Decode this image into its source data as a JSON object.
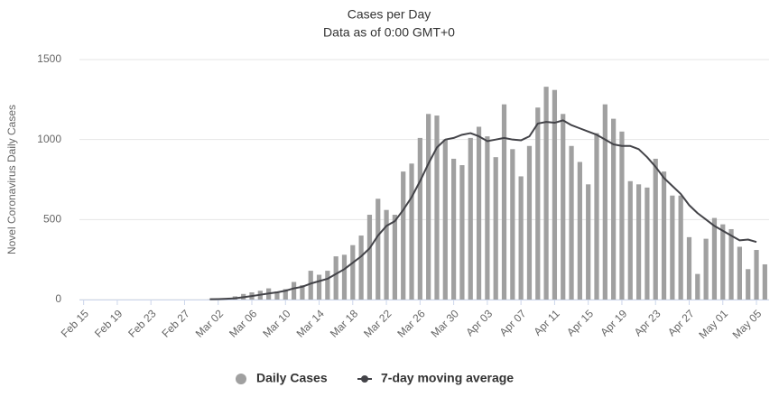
{
  "chart_data": {
    "type": "bar_line",
    "title": "Cases per Day",
    "subtitle": "Data as of 0:00 GMT+0",
    "y_axis_label": "Novel Coronavirus Daily Cases",
    "categories": [
      "Feb 15",
      null,
      null,
      null,
      "Feb 19",
      null,
      null,
      null,
      "Feb 23",
      null,
      null,
      null,
      "Feb 27",
      null,
      null,
      null,
      "Mar 02",
      null,
      null,
      null,
      "Mar 06",
      null,
      null,
      null,
      "Mar 10",
      null,
      null,
      null,
      "Mar 14",
      null,
      null,
      null,
      "Mar 18",
      null,
      null,
      null,
      "Mar 22",
      null,
      null,
      null,
      "Mar 26",
      null,
      null,
      null,
      "Mar 30",
      null,
      null,
      null,
      "Apr 03",
      null,
      null,
      null,
      "Apr 07",
      null,
      null,
      null,
      "Apr 11",
      null,
      null,
      null,
      "Apr 15",
      null,
      null,
      null,
      "Apr 19",
      null,
      null,
      null,
      "Apr 23",
      null,
      null,
      null,
      "Apr 27",
      null,
      null,
      null,
      "May 01",
      null,
      null,
      null,
      "May 05",
      null
    ],
    "series": [
      {
        "name": "Daily Cases",
        "type": "bar",
        "color": "#a0a0a0",
        "values": [
          0,
          0,
          0,
          0,
          0,
          0,
          0,
          0,
          0,
          0,
          0,
          0,
          0,
          0,
          0,
          1,
          3,
          5,
          20,
          35,
          45,
          55,
          70,
          50,
          65,
          110,
          90,
          180,
          155,
          180,
          270,
          280,
          340,
          400,
          530,
          630,
          560,
          530,
          800,
          850,
          1010,
          1160,
          1150,
          1000,
          880,
          840,
          1010,
          1080,
          1020,
          890,
          1220,
          940,
          770,
          960,
          1200,
          1330,
          1310,
          1160,
          960,
          860,
          720,
          1040,
          1220,
          1130,
          1050,
          740,
          720,
          700,
          880,
          800,
          650,
          650,
          390,
          160,
          380,
          510,
          470,
          440,
          330,
          190,
          310,
          220
        ]
      },
      {
        "name": "7-day moving average",
        "type": "line",
        "color": "#434348",
        "values": [
          null,
          null,
          null,
          null,
          null,
          null,
          null,
          null,
          null,
          null,
          null,
          null,
          null,
          null,
          null,
          2,
          3,
          5,
          8,
          15,
          22,
          30,
          38,
          45,
          55,
          70,
          80,
          100,
          115,
          130,
          160,
          190,
          230,
          270,
          320,
          400,
          460,
          490,
          560,
          640,
          740,
          850,
          950,
          1000,
          1010,
          1030,
          1040,
          1020,
          990,
          1000,
          1010,
          1000,
          995,
          1020,
          1100,
          1110,
          1105,
          1120,
          1090,
          1070,
          1050,
          1030,
          1000,
          970,
          960,
          960,
          940,
          890,
          830,
          760,
          710,
          660,
          590,
          540,
          500,
          460,
          430,
          400,
          370,
          375,
          360,
          null
        ]
      }
    ],
    "ylim": [
      0,
      1500
    ],
    "yticks": [
      0,
      500,
      1000,
      1500
    ],
    "grid": true,
    "legend": "bottom"
  }
}
